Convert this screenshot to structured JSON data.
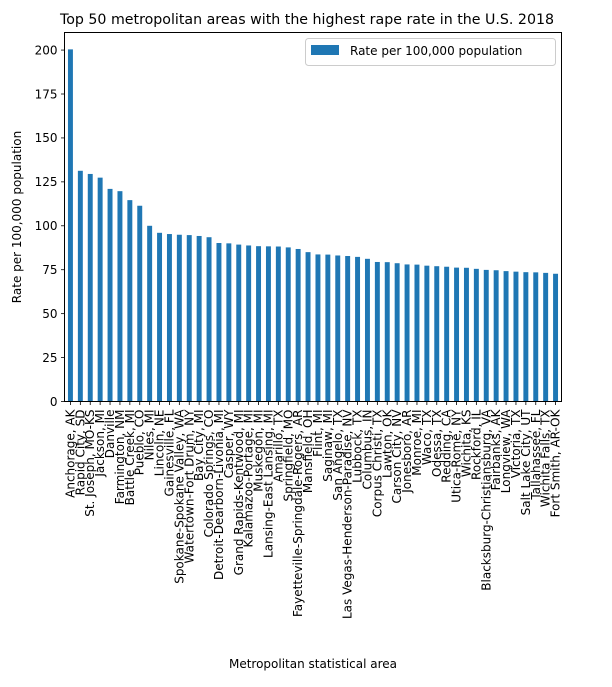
{
  "chart_data": {
    "type": "bar",
    "title": "Top 50 metropolitan areas with the highest rape rate in the U.S. 2018",
    "xlabel": "Metropolitan statistical area",
    "ylabel": "Rate per 100,000 population",
    "ylim": [
      0,
      210
    ],
    "yticks": [
      0,
      25,
      50,
      75,
      100,
      125,
      150,
      175,
      200
    ],
    "grid": false,
    "legend_position": "top-right",
    "bar_color": "#1f77b4",
    "series": [
      {
        "name": "Rate per 100,000 population",
        "values": [
          200.4,
          131.3,
          129.5,
          127.4,
          121.0,
          119.7,
          114.6,
          111.4,
          100.0,
          96.0,
          95.3,
          94.9,
          94.7,
          94.2,
          93.5,
          90.2,
          90.0,
          89.3,
          88.8,
          88.4,
          88.3,
          88.2,
          87.7,
          86.8,
          85.0,
          83.7,
          83.6,
          83.1,
          82.8,
          82.3,
          81.2,
          79.4,
          79.3,
          78.7,
          78.0,
          77.9,
          77.3,
          77.0,
          76.7,
          76.2,
          76.1,
          75.5,
          74.9,
          74.7,
          74.2,
          73.9,
          73.6,
          73.5,
          73.2,
          72.7
        ]
      }
    ],
    "categories": [
      "Anchorage, AK",
      "Rapid City, SD",
      "St. Joseph, MO-KS",
      "Jackson, MI",
      "Danville",
      "Farmington, NM",
      "Battle Creek, MI",
      "Pueblo, CO",
      "Niles, MI",
      "Lincoln, NE",
      "Gainesville, FL",
      "Spokane-Spokane Valley, WA",
      "Watertown-Fort Drum, NY",
      "Bay City, MI",
      "Colorado Springs, CO",
      "Detroit-Dearborn-Livonia, MI",
      "Casper, WY",
      "Grand Rapids-Kentwood, MI",
      "Kalamazoo-Portage, MI",
      "Muskegon, MI",
      "Lansing-East Lansing, MI",
      "Amarillo, TX",
      "Springfield, MO",
      "Fayetteville-Springdale-Rogers, AR",
      "Mansfield, OH",
      "Flint, MI",
      "Saginaw, MI",
      "San Angelo, TX",
      "Las Vegas-Henderson-Paradise, NV",
      "Lubbock, TX",
      "Columbus, IN",
      "Corpus Christi, TX",
      "Lawton, OK",
      "Carson City, NV",
      "Jonesboro, AR",
      "Monroe, MI",
      "Waco, TX",
      "Odessa, TX",
      "Redding, CA",
      "Utica-Rome, NY",
      "Wichita, KS",
      "Rockford, IL",
      "Blacksburg-Christiansburg, VA",
      "Fairbanks, AK",
      "Longview, WA",
      "Victoria, TX",
      "Salt Lake City, UT",
      "Tallahassee, FL",
      "Wichita Falls, TX",
      "Fort Smith, AR-OK"
    ]
  }
}
